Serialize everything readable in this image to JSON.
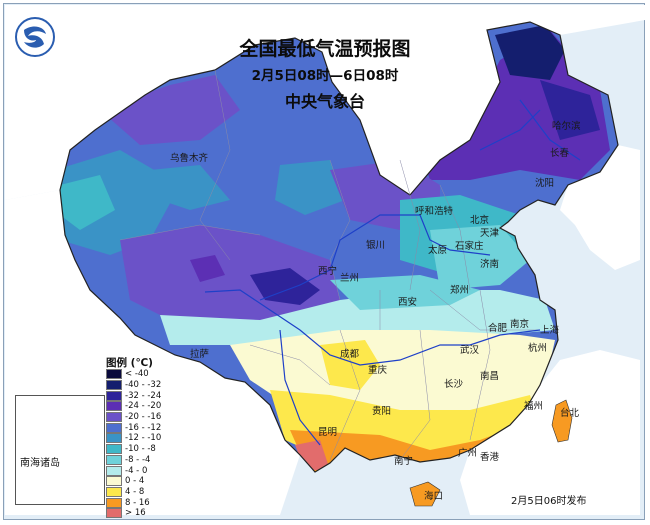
{
  "header": {
    "title": "全国最低气温预报图",
    "time_range": "2月5日08时—6日08时",
    "issuer": "中央气象台"
  },
  "legend": {
    "title": "图例 (℃)",
    "items": [
      {
        "label": "< -40",
        "color": "#0a0a3c"
      },
      {
        "label": "-40 - -32",
        "color": "#141e6e"
      },
      {
        "label": "-32 - -24",
        "color": "#2e239a"
      },
      {
        "label": "-24 - -20",
        "color": "#5c2fb4"
      },
      {
        "label": "-20 - -16",
        "color": "#6b52c8"
      },
      {
        "label": "-16 - -12",
        "color": "#4e6fcf"
      },
      {
        "label": "-12 - -10",
        "color": "#3a93c6"
      },
      {
        "label": "-10 - -8",
        "color": "#3fb8c8"
      },
      {
        "label": "-8 - -4",
        "color": "#6fd2da"
      },
      {
        "label": "-4 - 0",
        "color": "#b4ecec"
      },
      {
        "label": "0 - 4",
        "color": "#fbfad2"
      },
      {
        "label": "4 - 8",
        "color": "#fde84c"
      },
      {
        "label": "8 - 16",
        "color": "#f79a22"
      },
      {
        "label": "> 16",
        "color": "#e26c6c"
      }
    ]
  },
  "cities": [
    "乌鲁木齐",
    "哈尔滨",
    "长春",
    "沈阳",
    "呼和浩特",
    "北京",
    "天津",
    "银川",
    "太原",
    "石家庄",
    "济南",
    "西宁",
    "兰州",
    "西安",
    "郑州",
    "拉萨",
    "成都",
    "重庆",
    "合肥",
    "南京",
    "上海",
    "武汉",
    "杭州",
    "长沙",
    "南昌",
    "贵阳",
    "福州",
    "昆明",
    "南宁",
    "广州",
    "香港",
    "海口",
    "台北"
  ],
  "inset_label": "南海诸岛",
  "release_time": "2月5日06时发布",
  "colors": {
    "sea": "#e3eef7",
    "neighbor_land": "#ffffff",
    "river": "#1e40c8"
  }
}
